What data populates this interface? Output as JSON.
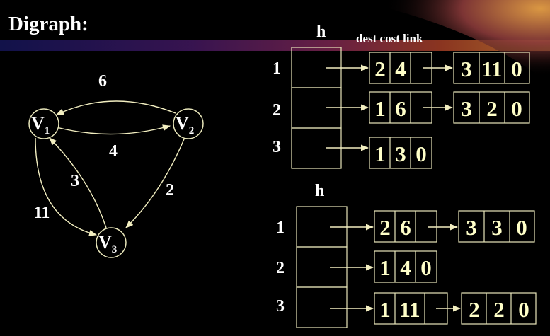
{
  "title": "Digraph:",
  "colors": {
    "background": "#000000",
    "text": "#ffffff",
    "cell_text": "#ffffc8",
    "edge": "#f2eec0",
    "node_stroke": "#e8e6ba",
    "banner": "#7a2a6a"
  },
  "graph": {
    "nodes": [
      {
        "id": "v1",
        "label": "V",
        "sub": "1"
      },
      {
        "id": "v2",
        "label": "V",
        "sub": "2"
      },
      {
        "id": "v3",
        "label": "V",
        "sub": "3"
      }
    ],
    "edges": [
      {
        "from": "v2",
        "to": "v1",
        "weight": "6"
      },
      {
        "from": "v1",
        "to": "v2",
        "weight": "4"
      },
      {
        "from": "v3",
        "to": "v1",
        "weight": "3"
      },
      {
        "from": "v2",
        "to": "v3",
        "weight": "2"
      },
      {
        "from": "v1",
        "to": "v3",
        "weight": "11"
      }
    ]
  },
  "list_top": {
    "header": "h",
    "columns_caption": "dest cost link",
    "rows": [
      {
        "index": "1",
        "nodes": [
          [
            "2",
            "4",
            ""
          ],
          [
            "3",
            "11",
            "0"
          ]
        ]
      },
      {
        "index": "2",
        "nodes": [
          [
            "1",
            "6",
            ""
          ],
          [
            "3",
            "2",
            "0"
          ]
        ]
      },
      {
        "index": "3",
        "nodes": [
          [
            "1",
            "3",
            "0"
          ]
        ]
      }
    ]
  },
  "list_bottom": {
    "header": "h",
    "rows": [
      {
        "index": "1",
        "nodes": [
          [
            "2",
            "6",
            ""
          ],
          [
            "3",
            "3",
            "0"
          ]
        ]
      },
      {
        "index": "2",
        "nodes": [
          [
            "1",
            "4",
            "0"
          ]
        ]
      },
      {
        "index": "3",
        "nodes": [
          [
            "1",
            "11",
            ""
          ],
          [
            "2",
            "2",
            "0"
          ]
        ]
      }
    ]
  }
}
